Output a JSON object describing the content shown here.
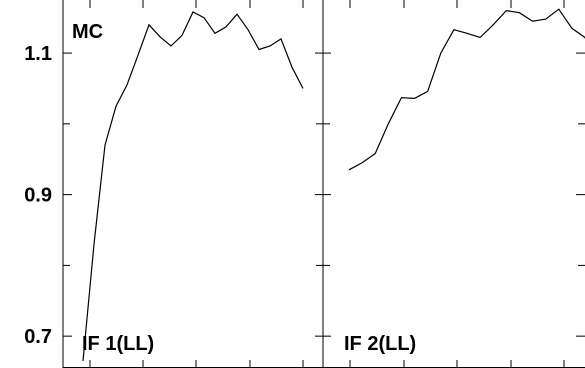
{
  "chart_data": {
    "type": "line",
    "corner_label": "MC",
    "ylim": [
      0.655,
      1.175
    ],
    "yticks": [
      0.7,
      0.9,
      1.1
    ],
    "ytick_labels": [
      "0.7",
      "0.9",
      "1.1"
    ],
    "grid": false,
    "panels": [
      {
        "title": "IF 1(LL)",
        "x": [
          0,
          1,
          2,
          3,
          4,
          5,
          6,
          7,
          8,
          9,
          10,
          11,
          12,
          13,
          14,
          15,
          16,
          17,
          18,
          19,
          20
        ],
        "y": [
          0.665,
          0.83,
          0.97,
          1.025,
          1.055,
          1.097,
          1.14,
          1.123,
          1.11,
          1.125,
          1.158,
          1.15,
          1.128,
          1.137,
          1.155,
          1.133,
          1.105,
          1.11,
          1.12,
          1.08,
          1.05
        ]
      },
      {
        "title": "IF 2(LL)",
        "x": [
          0,
          1,
          2,
          3,
          4,
          5,
          6,
          7,
          8,
          9,
          10,
          11,
          12,
          13,
          14,
          15,
          16,
          17,
          18
        ],
        "y": [
          0.935,
          0.945,
          0.958,
          1.0,
          1.037,
          1.036,
          1.046,
          1.1,
          1.133,
          1.128,
          1.122,
          1.14,
          1.16,
          1.157,
          1.145,
          1.148,
          1.162,
          1.135,
          1.122
        ]
      }
    ]
  }
}
